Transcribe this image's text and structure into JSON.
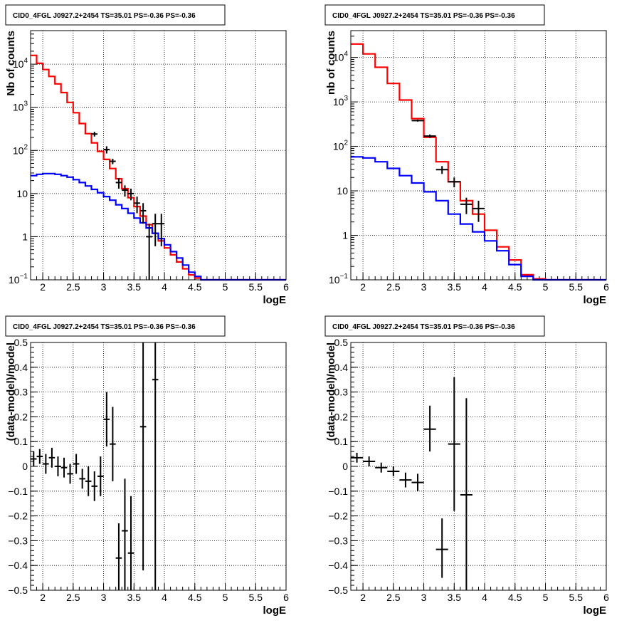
{
  "colors": {
    "total": "#ff0000",
    "background": "#0000ff",
    "data": "#000000",
    "grid": "#000000"
  },
  "chart_data": [
    {
      "type": "line",
      "title": "CID0_4FGL J0927.2+2454 TS=35.01 PS=-0.36 PS=-0.36",
      "xlabel": "logE",
      "ylabel": "Nb of counts",
      "xlim": [
        1.8,
        6.0
      ],
      "ylim": [
        0.1,
        60000
      ],
      "log_y": true,
      "grid": true,
      "x_ticks": [
        "2",
        "2.5",
        "3",
        "3.5",
        "4",
        "4.5",
        "5",
        "5.5",
        "6"
      ],
      "y_ticks": [
        {
          "value": 0.1,
          "base": "10",
          "exp": "−1"
        },
        {
          "value": 1,
          "base": "1",
          "exp": ""
        },
        {
          "value": 10,
          "base": "10",
          "exp": ""
        },
        {
          "value": 100,
          "base": "10",
          "exp": "2"
        },
        {
          "value": 1000,
          "base": "10",
          "exp": "3"
        },
        {
          "value": 10000,
          "base": "10",
          "exp": "4"
        }
      ],
      "bin_edges": [
        1.8,
        1.9,
        2.0,
        2.1,
        2.2,
        2.3,
        2.4,
        2.5,
        2.6,
        2.7,
        2.8,
        2.9,
        3.0,
        3.1,
        3.2,
        3.3,
        3.4,
        3.5,
        3.6,
        3.7,
        3.8,
        3.9,
        4.0,
        4.1,
        4.2,
        4.3,
        4.4,
        4.5,
        4.6,
        4.7,
        4.8,
        4.9,
        5.0,
        5.1,
        5.2,
        5.3,
        5.4,
        5.5,
        5.6,
        5.7,
        5.8,
        5.9,
        6.0
      ],
      "series": [
        {
          "style": "step",
          "color": "#ff0000",
          "values": [
            16000,
            10500,
            7500,
            5200,
            3500,
            2200,
            1300,
            750,
            420,
            245,
            150,
            95,
            62,
            38,
            22,
            13,
            8.0,
            5.0,
            3.0,
            1.9,
            1.2,
            0.8,
            0.55,
            0.38,
            0.26,
            0.18,
            0.13,
            0.11,
            0.1,
            0.1,
            0.1,
            0.1,
            0.1,
            0.1,
            0.1,
            0.1,
            0.1,
            0.1,
            0.1,
            0.1,
            0.1,
            0.1
          ]
        },
        {
          "style": "step",
          "color": "#0000ff",
          "values": [
            26,
            28,
            29,
            29,
            28,
            26,
            24,
            21,
            18,
            15,
            12.5,
            10.5,
            8.5,
            7.0,
            5.5,
            4.5,
            3.5,
            2.7,
            2.1,
            1.6,
            1.2,
            0.9,
            0.65,
            0.45,
            0.32,
            0.22,
            0.15,
            0.12,
            0.1,
            0.1,
            0.1,
            0.1,
            0.1,
            0.1,
            0.1,
            0.1,
            0.1,
            0.1,
            0.1,
            0.1,
            0.1,
            0.1
          ]
        },
        {
          "style": "errorbar",
          "color": "#000000",
          "points": [
            {
              "x": 2.85,
              "y": 240,
              "ylo": 210,
              "yhi": 270
            },
            {
              "x": 3.05,
              "y": 105,
              "ylo": 85,
              "yhi": 125
            },
            {
              "x": 3.15,
              "y": 56,
              "ylo": 48,
              "yhi": 64
            },
            {
              "x": 3.25,
              "y": 18,
              "ylo": 13,
              "yhi": 23
            },
            {
              "x": 3.35,
              "y": 12,
              "ylo": 8.5,
              "yhi": 15.5
            },
            {
              "x": 3.45,
              "y": 10,
              "ylo": 7,
              "yhi": 13
            },
            {
              "x": 3.55,
              "y": 6,
              "ylo": 3.5,
              "yhi": 8.5
            },
            {
              "x": 3.65,
              "y": 4,
              "ylo": 2,
              "yhi": 6
            },
            {
              "x": 3.75,
              "y": 1,
              "ylo": 0.1,
              "yhi": 2.0
            },
            {
              "x": 3.85,
              "y": 2,
              "ylo": 0.6,
              "yhi": 3.4
            },
            {
              "x": 3.95,
              "y": 2,
              "ylo": 0.6,
              "yhi": 3.4
            }
          ]
        }
      ]
    },
    {
      "type": "line",
      "title": "CID0_4FGL J0927.2+2454 TS=35.01 PS=-0.36 PS=-0.36",
      "xlabel": "logE",
      "ylabel": "nb of counts",
      "xlim": [
        1.8,
        6.0
      ],
      "ylim": [
        0.1,
        40000
      ],
      "log_y": true,
      "grid": true,
      "x_ticks": [
        "2",
        "2.5",
        "3",
        "3.5",
        "4",
        "4.5",
        "5",
        "5.5",
        "6"
      ],
      "y_ticks": [
        {
          "value": 0.1,
          "base": "10",
          "exp": "−1"
        },
        {
          "value": 1,
          "base": "1",
          "exp": ""
        },
        {
          "value": 10,
          "base": "10",
          "exp": ""
        },
        {
          "value": 100,
          "base": "10",
          "exp": "2"
        },
        {
          "value": 1000,
          "base": "10",
          "exp": "3"
        },
        {
          "value": 10000,
          "base": "10",
          "exp": "4"
        }
      ],
      "bin_edges": [
        1.8,
        2.0,
        2.2,
        2.4,
        2.6,
        2.8,
        3.0,
        3.2,
        3.4,
        3.6,
        3.8,
        4.0,
        4.2,
        4.4,
        4.6,
        4.8,
        5.0,
        5.2,
        5.4,
        5.6,
        5.8,
        6.0
      ],
      "series": [
        {
          "style": "step",
          "color": "#ff0000",
          "values": [
            20000,
            12000,
            6000,
            2600,
            1100,
            420,
            160,
            45,
            16,
            6.0,
            3.0,
            1.3,
            0.55,
            0.28,
            0.13,
            0.105,
            0.1,
            0.1,
            0.1,
            0.1,
            0.1
          ]
        },
        {
          "style": "step",
          "color": "#0000ff",
          "values": [
            58,
            55,
            45,
            32,
            22,
            15,
            9.5,
            6.0,
            3.0,
            1.8,
            1.2,
            0.75,
            0.45,
            0.22,
            0.12,
            0.1,
            0.1,
            0.1,
            0.1,
            0.1,
            0.1
          ]
        },
        {
          "style": "errorbar",
          "color": "#000000",
          "points": [
            {
              "x": 2.9,
              "y": 380,
              "ylo": 360,
              "yhi": 400
            },
            {
              "x": 3.1,
              "y": 170,
              "ylo": 155,
              "yhi": 185
            },
            {
              "x": 3.3,
              "y": 30,
              "ylo": 24,
              "yhi": 36
            },
            {
              "x": 3.5,
              "y": 16,
              "ylo": 12,
              "yhi": 20
            },
            {
              "x": 3.7,
              "y": 5,
              "ylo": 3,
              "yhi": 7
            },
            {
              "x": 3.9,
              "y": 4,
              "ylo": 2,
              "yhi": 6
            }
          ]
        }
      ]
    },
    {
      "type": "scatter",
      "title": "CID0_4FGL J0927.2+2454 TS=35.01 PS=-0.36 PS=-0.36",
      "xlabel": "logE",
      "ylabel": "(data-model)/model",
      "xlim": [
        1.8,
        6.0
      ],
      "ylim": [
        -0.5,
        0.5
      ],
      "grid": true,
      "x_ticks": [
        "2",
        "2.5",
        "3",
        "3.5",
        "4",
        "4.5",
        "5",
        "5.5",
        "6"
      ],
      "y_ticks": [
        "−0.5",
        "−0.4",
        "−0.3",
        "−0.2",
        "−0.1",
        "0",
        "0.1",
        "0.2",
        "0.3",
        "0.4",
        "0.5"
      ],
      "series": [
        {
          "style": "errorbar",
          "color": "#000000",
          "xerr": 0.05,
          "points": [
            {
              "x": 1.85,
              "y": 0.03,
              "ylo": 0.0,
              "yhi": 0.06
            },
            {
              "x": 1.95,
              "y": 0.04,
              "ylo": 0.01,
              "yhi": 0.07
            },
            {
              "x": 2.05,
              "y": 0.01,
              "ylo": -0.03,
              "yhi": 0.05
            },
            {
              "x": 2.15,
              "y": 0.035,
              "ylo": -0.005,
              "yhi": 0.075
            },
            {
              "x": 2.25,
              "y": 0.0,
              "ylo": -0.04,
              "yhi": 0.04
            },
            {
              "x": 2.35,
              "y": -0.005,
              "ylo": -0.045,
              "yhi": 0.035
            },
            {
              "x": 2.45,
              "y": -0.03,
              "ylo": -0.07,
              "yhi": 0.01
            },
            {
              "x": 2.55,
              "y": 0.01,
              "ylo": -0.03,
              "yhi": 0.05
            },
            {
              "x": 2.65,
              "y": -0.05,
              "ylo": -0.09,
              "yhi": -0.01
            },
            {
              "x": 2.75,
              "y": -0.06,
              "ylo": -0.12,
              "yhi": 0.0
            },
            {
              "x": 2.85,
              "y": -0.08,
              "ylo": -0.14,
              "yhi": -0.02
            },
            {
              "x": 2.95,
              "y": -0.04,
              "ylo": -0.12,
              "yhi": 0.04
            },
            {
              "x": 3.05,
              "y": 0.19,
              "ylo": 0.08,
              "yhi": 0.3
            },
            {
              "x": 3.15,
              "y": 0.09,
              "ylo": -0.06,
              "yhi": 0.24
            },
            {
              "x": 3.25,
              "y": -0.37,
              "ylo": -0.51,
              "yhi": -0.23
            },
            {
              "x": 3.35,
              "y": -0.26,
              "ylo": -0.51,
              "yhi": -0.05
            },
            {
              "x": 3.45,
              "y": -0.35,
              "ylo": -0.51,
              "yhi": -0.12
            },
            {
              "x": 3.65,
              "y": 0.16,
              "ylo": -0.42,
              "yhi": 0.51
            },
            {
              "x": 3.85,
              "y": 0.35,
              "ylo": -0.51,
              "yhi": 0.51
            }
          ]
        }
      ]
    },
    {
      "type": "scatter",
      "title": "CID0_4FGL J0927.2+2454 TS=35.01 PS=-0.36 PS=-0.36",
      "xlabel": "logE",
      "ylabel": "(data-model)/model",
      "xlim": [
        1.8,
        6.0
      ],
      "ylim": [
        -0.5,
        0.5
      ],
      "grid": true,
      "x_ticks": [
        "2",
        "2.5",
        "3",
        "3.5",
        "4",
        "4.5",
        "5",
        "5.5",
        "6"
      ],
      "y_ticks": [
        "−0.5",
        "−0.4",
        "−0.3",
        "−0.2",
        "−0.1",
        "0",
        "0.1",
        "0.2",
        "0.3",
        "0.4",
        "0.5"
      ],
      "series": [
        {
          "style": "errorbar",
          "color": "#000000",
          "xerr": 0.1,
          "points": [
            {
              "x": 1.9,
              "y": 0.035,
              "ylo": 0.015,
              "yhi": 0.055
            },
            {
              "x": 2.1,
              "y": 0.02,
              "ylo": 0.0,
              "yhi": 0.04
            },
            {
              "x": 2.3,
              "y": -0.005,
              "ylo": -0.025,
              "yhi": 0.015
            },
            {
              "x": 2.5,
              "y": -0.02,
              "ylo": -0.04,
              "yhi": 0.0
            },
            {
              "x": 2.7,
              "y": -0.055,
              "ylo": -0.085,
              "yhi": -0.025
            },
            {
              "x": 2.9,
              "y": -0.065,
              "ylo": -0.1,
              "yhi": -0.03
            },
            {
              "x": 3.1,
              "y": 0.15,
              "ylo": 0.06,
              "yhi": 0.245
            },
            {
              "x": 3.3,
              "y": -0.335,
              "ylo": -0.45,
              "yhi": -0.21
            },
            {
              "x": 3.5,
              "y": 0.09,
              "ylo": -0.18,
              "yhi": 0.36
            },
            {
              "x": 3.7,
              "y": -0.115,
              "ylo": -0.51,
              "yhi": 0.275
            }
          ]
        }
      ]
    }
  ]
}
